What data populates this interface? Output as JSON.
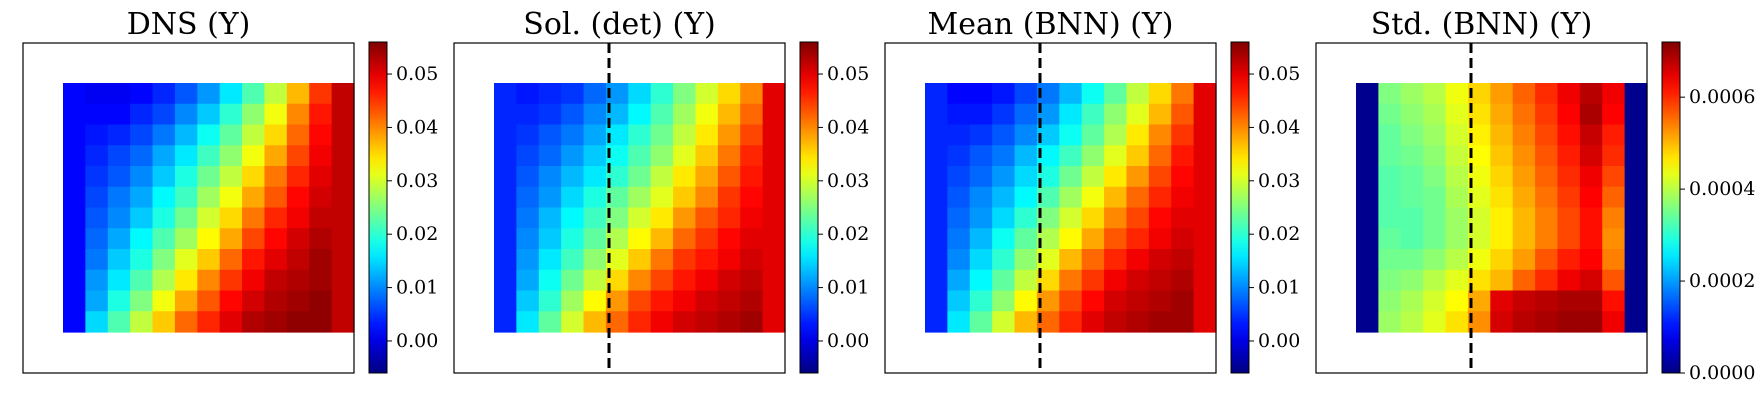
{
  "chart_data": [
    {
      "type": "heatmap",
      "title": "DNS (Y)",
      "colormap": "jet",
      "vmin": -0.006,
      "vmax": 0.056,
      "colorbar_ticks": [
        0.0,
        0.01,
        0.02,
        0.03,
        0.04,
        0.05
      ],
      "colorbar_tick_labels": [
        "0.00",
        "0.01",
        "0.02",
        "0.03",
        "0.04",
        "0.05"
      ],
      "dashed_line": false,
      "grid": [
        [
          0.002,
          0.001,
          0.001,
          0.002,
          0.004,
          0.007,
          0.011,
          0.016,
          0.022,
          0.029,
          0.037,
          0.045,
          0.052
        ],
        [
          0.002,
          0.002,
          0.002,
          0.004,
          0.006,
          0.01,
          0.014,
          0.02,
          0.026,
          0.032,
          0.04,
          0.047,
          0.052
        ],
        [
          0.002,
          0.003,
          0.004,
          0.006,
          0.009,
          0.013,
          0.018,
          0.023,
          0.029,
          0.035,
          0.042,
          0.048,
          0.052
        ],
        [
          0.002,
          0.004,
          0.006,
          0.008,
          0.012,
          0.016,
          0.021,
          0.026,
          0.032,
          0.038,
          0.044,
          0.049,
          0.052
        ],
        [
          0.002,
          0.005,
          0.007,
          0.01,
          0.014,
          0.019,
          0.024,
          0.029,
          0.035,
          0.041,
          0.046,
          0.05,
          0.052
        ],
        [
          0.002,
          0.006,
          0.009,
          0.012,
          0.017,
          0.021,
          0.027,
          0.032,
          0.038,
          0.043,
          0.048,
          0.051,
          0.052
        ],
        [
          0.002,
          0.007,
          0.01,
          0.014,
          0.019,
          0.024,
          0.03,
          0.035,
          0.041,
          0.046,
          0.049,
          0.052,
          0.052
        ],
        [
          0.002,
          0.008,
          0.012,
          0.017,
          0.022,
          0.027,
          0.033,
          0.038,
          0.044,
          0.048,
          0.051,
          0.053,
          0.052
        ],
        [
          0.002,
          0.009,
          0.014,
          0.019,
          0.025,
          0.031,
          0.036,
          0.042,
          0.047,
          0.05,
          0.052,
          0.054,
          0.052
        ],
        [
          0.002,
          0.011,
          0.016,
          0.022,
          0.028,
          0.034,
          0.04,
          0.045,
          0.049,
          0.052,
          0.053,
          0.054,
          0.052
        ],
        [
          0.002,
          0.012,
          0.019,
          0.025,
          0.032,
          0.038,
          0.043,
          0.048,
          0.051,
          0.053,
          0.054,
          0.055,
          0.052
        ],
        [
          0.002,
          0.015,
          0.022,
          0.029,
          0.036,
          0.042,
          0.046,
          0.05,
          0.053,
          0.054,
          0.055,
          0.055,
          0.052
        ]
      ]
    },
    {
      "type": "heatmap",
      "title": "Sol. (det) (Y)",
      "colormap": "jet",
      "vmin": -0.006,
      "vmax": 0.056,
      "colorbar_ticks": [
        0.0,
        0.01,
        0.02,
        0.03,
        0.04,
        0.05
      ],
      "colorbar_tick_labels": [
        "0.00",
        "0.01",
        "0.02",
        "0.03",
        "0.04",
        "0.05"
      ],
      "dashed_line": true,
      "grid": [
        [
          0.004,
          0.003,
          0.004,
          0.005,
          0.008,
          0.011,
          0.015,
          0.02,
          0.025,
          0.03,
          0.035,
          0.04,
          0.05
        ],
        [
          0.004,
          0.004,
          0.005,
          0.007,
          0.01,
          0.013,
          0.017,
          0.022,
          0.027,
          0.032,
          0.037,
          0.042,
          0.05
        ],
        [
          0.004,
          0.005,
          0.007,
          0.009,
          0.012,
          0.016,
          0.02,
          0.024,
          0.029,
          0.034,
          0.039,
          0.044,
          0.05
        ],
        [
          0.004,
          0.006,
          0.008,
          0.011,
          0.014,
          0.018,
          0.022,
          0.026,
          0.031,
          0.036,
          0.041,
          0.046,
          0.05
        ],
        [
          0.004,
          0.007,
          0.01,
          0.013,
          0.016,
          0.02,
          0.024,
          0.029,
          0.034,
          0.038,
          0.043,
          0.047,
          0.05
        ],
        [
          0.004,
          0.008,
          0.011,
          0.015,
          0.019,
          0.023,
          0.027,
          0.031,
          0.036,
          0.04,
          0.045,
          0.048,
          0.05
        ],
        [
          0.004,
          0.009,
          0.013,
          0.017,
          0.021,
          0.025,
          0.03,
          0.034,
          0.039,
          0.043,
          0.046,
          0.049,
          0.05
        ],
        [
          0.004,
          0.01,
          0.014,
          0.019,
          0.023,
          0.028,
          0.033,
          0.037,
          0.042,
          0.045,
          0.048,
          0.05,
          0.05
        ],
        [
          0.004,
          0.011,
          0.016,
          0.021,
          0.026,
          0.031,
          0.036,
          0.041,
          0.045,
          0.047,
          0.049,
          0.051,
          0.05
        ],
        [
          0.004,
          0.012,
          0.018,
          0.024,
          0.029,
          0.035,
          0.04,
          0.044,
          0.047,
          0.049,
          0.051,
          0.052,
          0.05
        ],
        [
          0.004,
          0.014,
          0.02,
          0.027,
          0.033,
          0.039,
          0.044,
          0.047,
          0.049,
          0.051,
          0.052,
          0.053,
          0.05
        ],
        [
          0.004,
          0.016,
          0.023,
          0.03,
          0.037,
          0.042,
          0.046,
          0.049,
          0.051,
          0.052,
          0.053,
          0.054,
          0.05
        ]
      ]
    },
    {
      "type": "heatmap",
      "title": "Mean (BNN) (Y)",
      "colormap": "jet",
      "vmin": -0.006,
      "vmax": 0.056,
      "colorbar_ticks": [
        0.0,
        0.01,
        0.02,
        0.03,
        0.04,
        0.05
      ],
      "colorbar_tick_labels": [
        "0.00",
        "0.01",
        "0.02",
        "0.03",
        "0.04",
        "0.05"
      ],
      "dashed_line": true,
      "grid": [
        [
          0.004,
          0.002,
          0.002,
          0.003,
          0.006,
          0.009,
          0.013,
          0.018,
          0.023,
          0.029,
          0.035,
          0.041,
          0.05
        ],
        [
          0.004,
          0.003,
          0.003,
          0.005,
          0.008,
          0.011,
          0.016,
          0.021,
          0.026,
          0.031,
          0.037,
          0.043,
          0.05
        ],
        [
          0.004,
          0.004,
          0.005,
          0.007,
          0.01,
          0.014,
          0.018,
          0.023,
          0.028,
          0.034,
          0.04,
          0.045,
          0.05
        ],
        [
          0.004,
          0.005,
          0.007,
          0.009,
          0.013,
          0.017,
          0.021,
          0.026,
          0.031,
          0.036,
          0.042,
          0.047,
          0.05
        ],
        [
          0.004,
          0.006,
          0.008,
          0.011,
          0.015,
          0.019,
          0.024,
          0.029,
          0.034,
          0.039,
          0.044,
          0.048,
          0.05
        ],
        [
          0.004,
          0.007,
          0.01,
          0.013,
          0.017,
          0.022,
          0.027,
          0.032,
          0.037,
          0.042,
          0.046,
          0.049,
          0.05
        ],
        [
          0.004,
          0.008,
          0.011,
          0.015,
          0.02,
          0.025,
          0.03,
          0.035,
          0.04,
          0.044,
          0.048,
          0.05,
          0.05
        ],
        [
          0.004,
          0.009,
          0.013,
          0.018,
          0.023,
          0.028,
          0.033,
          0.038,
          0.043,
          0.046,
          0.049,
          0.051,
          0.05
        ],
        [
          0.004,
          0.01,
          0.015,
          0.02,
          0.026,
          0.031,
          0.037,
          0.042,
          0.046,
          0.049,
          0.051,
          0.052,
          0.05
        ],
        [
          0.004,
          0.012,
          0.017,
          0.023,
          0.029,
          0.035,
          0.041,
          0.045,
          0.049,
          0.051,
          0.052,
          0.053,
          0.05
        ],
        [
          0.004,
          0.014,
          0.02,
          0.026,
          0.033,
          0.039,
          0.044,
          0.048,
          0.051,
          0.052,
          0.053,
          0.054,
          0.05
        ],
        [
          0.004,
          0.016,
          0.023,
          0.03,
          0.037,
          0.042,
          0.046,
          0.05,
          0.052,
          0.053,
          0.054,
          0.054,
          0.05
        ]
      ]
    },
    {
      "type": "heatmap",
      "title": "Std. (BNN) (Y)",
      "colormap": "jet",
      "vmin": 0.0,
      "vmax": 0.00072,
      "colorbar_ticks": [
        0.0,
        0.0002,
        0.0004,
        0.0006
      ],
      "colorbar_tick_labels": [
        "0.0000",
        "0.0002",
        "0.0004",
        "0.0006"
      ],
      "dashed_line": true,
      "grid": [
        [
          1e-05,
          0.00036,
          0.00038,
          0.0004,
          0.00044,
          0.00048,
          0.00052,
          0.00056,
          0.0006,
          0.00064,
          0.00068,
          0.00064,
          1e-05
        ],
        [
          1e-05,
          0.00035,
          0.00037,
          0.00039,
          0.00043,
          0.00047,
          0.00051,
          0.00055,
          0.00059,
          0.00063,
          0.00069,
          0.00063,
          1e-05
        ],
        [
          1e-05,
          0.00034,
          0.00036,
          0.00038,
          0.00042,
          0.00046,
          0.0005,
          0.00054,
          0.00058,
          0.00062,
          0.00067,
          0.00061,
          1e-05
        ],
        [
          1e-05,
          0.00034,
          0.00035,
          0.00037,
          0.00041,
          0.00045,
          0.00049,
          0.00053,
          0.00057,
          0.00061,
          0.00066,
          0.0006,
          1e-05
        ],
        [
          1e-05,
          0.00033,
          0.00034,
          0.00036,
          0.0004,
          0.00044,
          0.00048,
          0.00052,
          0.00056,
          0.0006,
          0.00064,
          0.00058,
          1e-05
        ],
        [
          1e-05,
          0.00033,
          0.00034,
          0.00035,
          0.00039,
          0.00043,
          0.00047,
          0.00051,
          0.00055,
          0.00059,
          0.00063,
          0.00056,
          1e-05
        ],
        [
          1e-05,
          0.00033,
          0.00033,
          0.00035,
          0.00038,
          0.00042,
          0.00046,
          0.0005,
          0.00054,
          0.00058,
          0.00062,
          0.00054,
          1e-05
        ],
        [
          1e-05,
          0.00034,
          0.00033,
          0.00035,
          0.00038,
          0.00042,
          0.00046,
          0.0005,
          0.00054,
          0.00058,
          0.00062,
          0.00053,
          1e-05
        ],
        [
          1e-05,
          0.00035,
          0.00035,
          0.00037,
          0.0004,
          0.00044,
          0.00048,
          0.00052,
          0.00057,
          0.00061,
          0.00063,
          0.00054,
          1e-05
        ],
        [
          1e-05,
          0.00036,
          0.00037,
          0.0004,
          0.00043,
          0.00047,
          0.0005,
          0.00056,
          0.0006,
          0.00064,
          0.00066,
          0.00057,
          1e-05
        ],
        [
          1e-05,
          0.00037,
          0.00039,
          0.00042,
          0.00045,
          0.00051,
          0.00065,
          0.00067,
          0.00068,
          0.00069,
          0.00069,
          0.00062,
          1e-05
        ],
        [
          1e-05,
          0.00038,
          0.0004,
          0.00043,
          0.00047,
          0.00053,
          0.00066,
          0.00068,
          0.00069,
          0.0007,
          0.0007,
          0.00064,
          1e-05
        ]
      ]
    }
  ]
}
